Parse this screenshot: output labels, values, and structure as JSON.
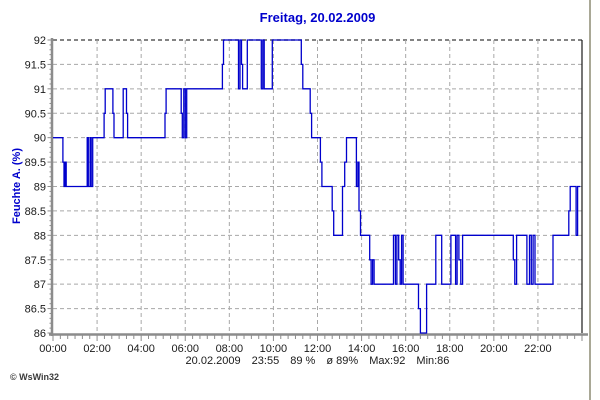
{
  "title": "Freitag, 20.02.2009",
  "ylabel": "Feuchte A. (%)",
  "footer": {
    "date": "20.02.2009",
    "time": "23:55",
    "value": "89 %",
    "average": "ø 89%",
    "max": "Max:92",
    "min": "Min:86"
  },
  "credit": "© WsWin32",
  "colors": {
    "line": "#0000CC",
    "title": "#0000CC",
    "grid": "#A8A8A8",
    "grid_top": "#5A5A5A",
    "spine": "#8C8C8C",
    "tick": "#8C8C8C",
    "right_border": "#1A1A1A",
    "text": "#1A1A1A",
    "background": "#FFFFFF"
  },
  "chart_data": {
    "type": "line",
    "step": true,
    "title": "Freitag, 20.02.2009",
    "xlabel": "",
    "ylabel": "Feuchte A. (%)",
    "x_unit": "minutes_of_day",
    "xlim": [
      0,
      1440
    ],
    "ylim": [
      86,
      92
    ],
    "y_tick_step": 0.5,
    "y_minor_step": 0.1,
    "x_minor_step_minutes": 20,
    "grid": true,
    "legend": "none",
    "x_tick_minutes": [
      0,
      120,
      240,
      360,
      480,
      600,
      720,
      840,
      960,
      1080,
      1200,
      1320
    ],
    "x_tick_labels": [
      "00:00",
      "02:00",
      "04:00",
      "06:00",
      "08:00",
      "10:00",
      "12:00",
      "14:00",
      "16:00",
      "18:00",
      "20:00",
      "22:00"
    ],
    "y_tick_values": [
      86,
      86.5,
      87,
      87.5,
      88,
      88.5,
      89,
      89.5,
      90,
      90.5,
      91,
      91.5,
      92
    ],
    "series": [
      {
        "name": "Feuchte A. (%)",
        "points": [
          [
            0,
            90
          ],
          [
            27,
            89.5
          ],
          [
            30,
            89
          ],
          [
            33,
            89.5
          ],
          [
            36,
            89
          ],
          [
            93,
            90
          ],
          [
            96,
            89
          ],
          [
            101,
            90
          ],
          [
            104,
            89
          ],
          [
            108,
            90
          ],
          [
            139,
            90.5
          ],
          [
            142,
            91
          ],
          [
            163,
            90.5
          ],
          [
            166,
            90
          ],
          [
            191,
            91
          ],
          [
            200,
            90.5
          ],
          [
            203,
            90
          ],
          [
            305,
            90.5
          ],
          [
            308,
            91
          ],
          [
            349,
            90.5
          ],
          [
            352,
            90
          ],
          [
            356,
            91
          ],
          [
            360,
            90
          ],
          [
            364,
            91
          ],
          [
            461,
            91.5
          ],
          [
            464,
            92
          ],
          [
            505,
            91
          ],
          [
            509,
            92
          ],
          [
            513,
            91.5
          ],
          [
            516,
            91
          ],
          [
            529,
            92
          ],
          [
            567,
            91
          ],
          [
            571,
            92
          ],
          [
            575,
            91
          ],
          [
            597,
            92
          ],
          [
            676,
            91.5
          ],
          [
            680,
            91
          ],
          [
            700,
            90.5
          ],
          [
            704,
            90
          ],
          [
            728,
            89.5
          ],
          [
            732,
            89
          ],
          [
            760,
            88.5
          ],
          [
            764,
            88
          ],
          [
            788,
            89
          ],
          [
            794,
            89.5
          ],
          [
            799,
            90
          ],
          [
            826,
            89
          ],
          [
            830,
            89.5
          ],
          [
            833,
            88.5
          ],
          [
            837,
            88
          ],
          [
            862,
            87.5
          ],
          [
            866,
            87
          ],
          [
            870,
            87.5
          ],
          [
            874,
            87
          ],
          [
            927,
            88
          ],
          [
            932,
            87
          ],
          [
            936,
            88
          ],
          [
            941,
            87.5
          ],
          [
            945,
            87
          ],
          [
            949,
            88
          ],
          [
            953,
            87
          ],
          [
            995,
            86.5
          ],
          [
            1000,
            86
          ],
          [
            1017,
            87
          ],
          [
            1042,
            88
          ],
          [
            1058,
            87
          ],
          [
            1083,
            88
          ],
          [
            1096,
            87
          ],
          [
            1100,
            88
          ],
          [
            1105,
            87.5
          ],
          [
            1110,
            87
          ],
          [
            1115,
            88
          ],
          [
            1253,
            87.5
          ],
          [
            1257,
            87
          ],
          [
            1262,
            88
          ],
          [
            1290,
            87
          ],
          [
            1297,
            88
          ],
          [
            1302,
            87
          ],
          [
            1307,
            88
          ],
          [
            1312,
            87
          ],
          [
            1361,
            88
          ],
          [
            1404,
            88.5
          ],
          [
            1408,
            89
          ],
          [
            1424,
            88
          ],
          [
            1428,
            89
          ],
          [
            1435,
            89
          ]
        ]
      }
    ],
    "stats": {
      "last_time": "23:55",
      "last_value_pct": 89,
      "average_pct": 89,
      "max": 92,
      "min": 86
    }
  }
}
